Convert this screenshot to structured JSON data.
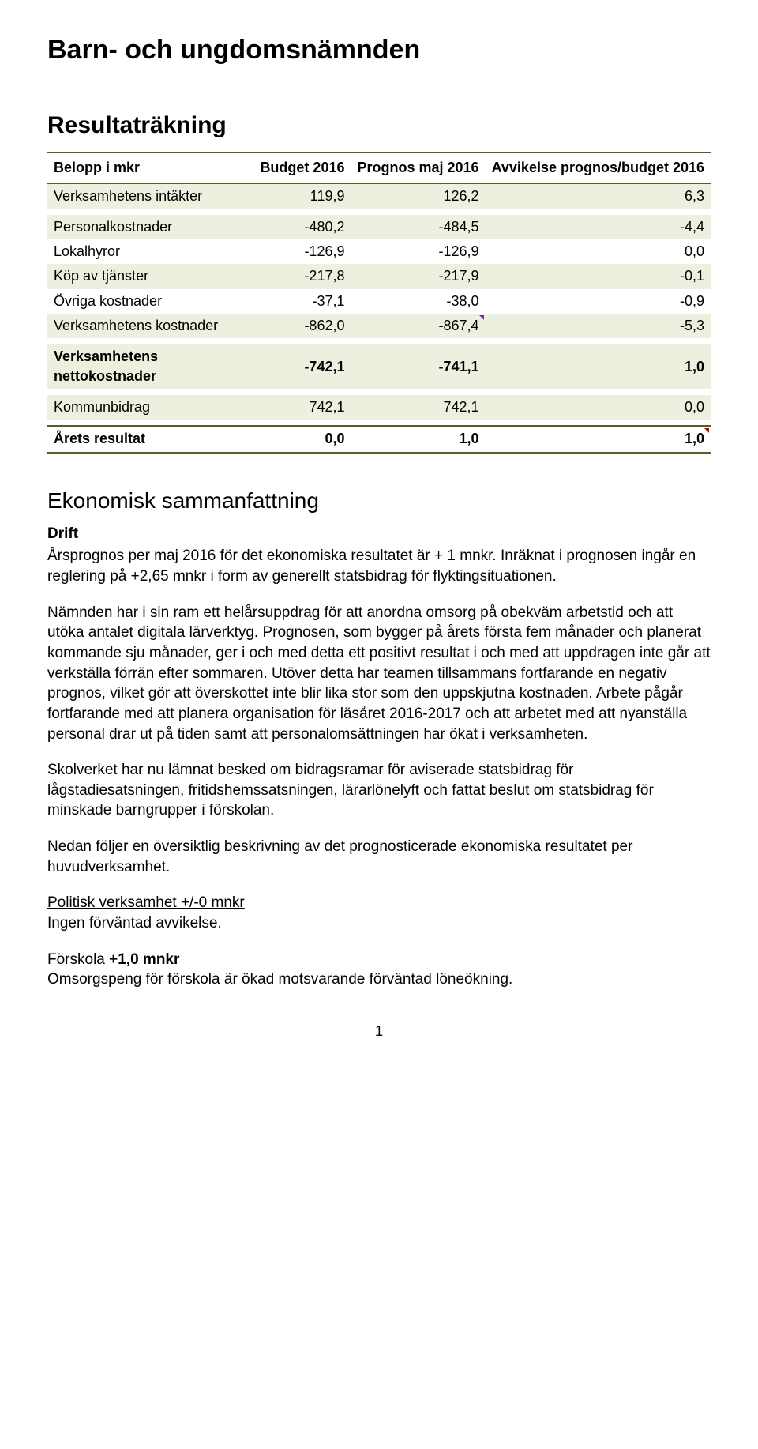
{
  "title": "Barn- och ungdomsnämnden",
  "section1": "Resultaträkning",
  "section2": "Ekonomisk sammanfattning",
  "drift": "Drift",
  "table": {
    "type": "table",
    "columns": [
      "Belopp i mkr",
      "Budget 2016",
      "Prognos maj 2016",
      "Avvikelse prognos/budget 2016"
    ],
    "rows": [
      {
        "label": "Verksamhetens intäkter",
        "c1": "119,9",
        "c2": "126,2",
        "c3": "6,3",
        "alt": true
      },
      {
        "spacer": true
      },
      {
        "label": "Personalkostnader",
        "c1": "-480,2",
        "c2": "-484,5",
        "c3": "-4,4",
        "alt": true
      },
      {
        "label": "Lokalhyror",
        "c1": "-126,9",
        "c2": "-126,9",
        "c3": "0,0"
      },
      {
        "label": "Köp av tjänster",
        "c1": "-217,8",
        "c2": "-217,9",
        "c3": "-0,1",
        "alt": true
      },
      {
        "label": "Övriga kostnader",
        "c1": "-37,1",
        "c2": "-38,0",
        "c3": "-0,9"
      },
      {
        "label": "Verksamhetens kostnader",
        "c1": "-862,0",
        "c2": "-867,4",
        "c3": "-5,3",
        "alt": true,
        "marker": "violet"
      },
      {
        "spacer": true
      },
      {
        "label": "Verksamhetens nettokostnader",
        "c1": "-742,1",
        "c2": "-741,1",
        "c3": "1,0",
        "alt": true,
        "bold": true
      },
      {
        "spacer": true
      },
      {
        "label": "Kommunbidrag",
        "c1": "742,1",
        "c2": "742,1",
        "c3": "0,0",
        "alt": true
      },
      {
        "spacer": true
      },
      {
        "label": "Årets resultat",
        "c1": "0,0",
        "c2": "1,0",
        "c3": "1,0",
        "last": true,
        "bold": true,
        "marker": "red"
      }
    ],
    "header_bg": "#ffffff",
    "alt_bg": "#ebf1de",
    "border_color": "#4f6228",
    "col_widths": [
      "40%",
      "20%",
      "20%",
      "20%"
    ]
  },
  "body": {
    "p1": "Årsprognos per maj 2016 för det ekonomiska resultatet är + 1 mnkr. Inräknat i prognosen ingår en reglering på +2,65 mnkr i form av generellt statsbidrag för flyktingsituationen.",
    "p2": "Nämnden har i sin ram ett helårsuppdrag för att anordna omsorg på obekväm arbetstid och att utöka antalet digitala lärverktyg. Prognosen, som bygger på årets första fem månader och planerat kommande sju månader, ger i och med detta ett positivt resultat i och med att uppdragen inte går att verkställa förrän efter sommaren. Utöver detta har teamen tillsammans fortfarande en negativ prognos, vilket gör att överskottet inte blir lika stor som den uppskjutna kostnaden. Arbete pågår fortfarande med att planera organisation för läsåret 2016-2017 och att arbetet med att nyanställa personal drar ut på tiden samt att personalomsättningen har ökat i verksamheten.",
    "p3": "Skolverket har nu lämnat besked om bidragsramar för aviserade statsbidrag för lågstadiesatsningen, fritidshemssatsningen, lärarlönelyft och fattat beslut om statsbidrag för minskade barngrupper i förskolan.",
    "p4": "Nedan följer en översiktlig beskrivning av det prognosticerade ekonomiska resultatet per huvudverksamhet.",
    "politisk_head": "Politisk verksamhet +/-0 mnkr",
    "politisk_body": "Ingen förväntad avvikelse.",
    "forskola_head_u": "Förskola",
    "forskola_head_rest": " +1,0 mnkr",
    "forskola_body": "Omsorgspeng för förskola är ökad motsvarande förväntad löneökning."
  },
  "pagenum": "1"
}
